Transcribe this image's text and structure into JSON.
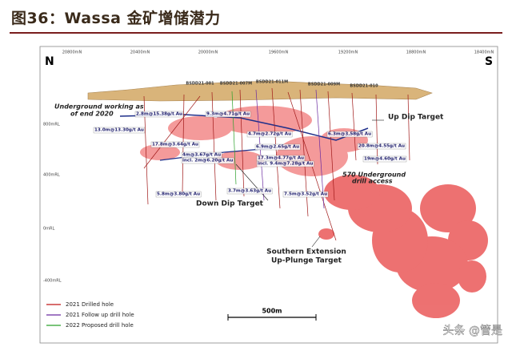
{
  "header": {
    "title": "图36：Wassa 金矿增储潜力"
  },
  "section": {
    "compass": {
      "left": "N",
      "right": "S"
    },
    "eastings": [
      "20800mN",
      "20400mN",
      "20000mN",
      "19600mN",
      "19200mN",
      "18800mN",
      "18400mN"
    ],
    "elevations": [
      "800mRL",
      "400mRL",
      "0mRL",
      "-400mRL"
    ],
    "holes": [
      "BSDD21-001",
      "BSDD21-007M",
      "BSDD21-011M",
      "BSDD21-009M",
      "BSDD21-010"
    ],
    "intercepts": [
      "2.8m@15.38g/t Au",
      "9.3m@4.71g/t Au",
      "13.0m@13.30g/t Au",
      "17.8m@3.64g/t Au",
      "4m@3.67g/t Au",
      "incl. 2m@6.20g/t Au",
      "6.9m@2.65g/t Au",
      "4.7m@2.72g/t Au",
      "17.3m@4.77g/t Au",
      "incl. 9.4m@7.28g/t Au",
      "6.3m@3.58g/t Au",
      "19m@4.60g/t Au",
      "5.8m@3.80g/t Au",
      "3.7m@3.63g/t Au",
      "7.5m@3.52g/t Au",
      "20.8m@4.55g/t Au"
    ],
    "annotations": {
      "underground": [
        "Underground working as",
        "of end 2020"
      ],
      "up_dip": "Up Dip Target",
      "down_dip": "Down Dip Target",
      "access": [
        "570 Underground",
        "drill access"
      ],
      "southern": [
        "Southern Extension",
        "Up-Plunge Target"
      ]
    },
    "scale": "500m"
  },
  "legend": [
    "2021 Drilled hole",
    "2021 Follow up drill hole",
    "2022 Proposed drill hole"
  ],
  "watermark": "头条 @管是"
}
